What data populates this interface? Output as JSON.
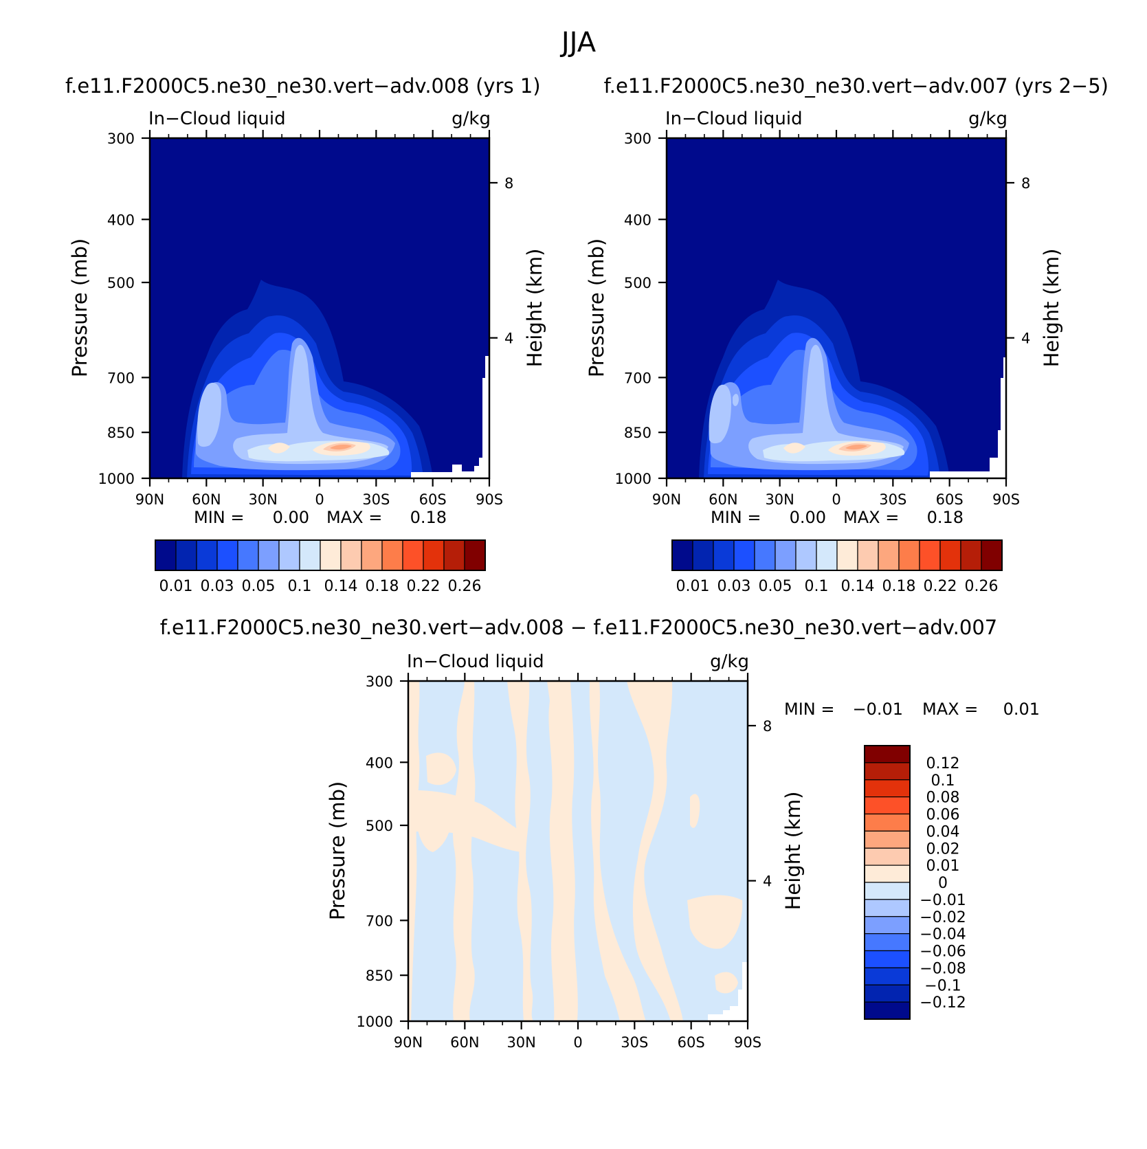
{
  "figure": {
    "title": "JJA"
  },
  "colors": {
    "main_scale": [
      "#000a8c",
      "#0224b0",
      "#0a3ad8",
      "#1c50ff",
      "#4678ff",
      "#7c9fff",
      "#aec8ff",
      "#d4e8fb",
      "#feebd8",
      "#fdcbb0",
      "#fda77e",
      "#fd7d4a",
      "#fd5128",
      "#e3320b",
      "#b51e08",
      "#800000"
    ],
    "diff_scale": [
      "#000a8c",
      "#0224b0",
      "#0a3ad8",
      "#1c50ff",
      "#4678ff",
      "#7c9fff",
      "#aec8ff",
      "#d4e8fb",
      "#feebd8",
      "#fdcbb0",
      "#fda77e",
      "#fd7d4a",
      "#fd5128",
      "#e3320b",
      "#b51e08",
      "#800000"
    ]
  },
  "chart_data": [
    {
      "type": "heatmap",
      "id": "panel1",
      "title": "f.e11.F2000C5.ne30_ne30.vert−adv.008 (yrs 1)",
      "variable": "In−Cloud liquid",
      "units": "g/kg",
      "ylabel": "Pressure (mb)",
      "ylabel_right": "Height (km)",
      "x_ticks": [
        "90N",
        "60N",
        "30N",
        "0",
        "30S",
        "60S",
        "90S"
      ],
      "y_ticks": [
        "300",
        "400",
        "500",
        "700",
        "850",
        "1000"
      ],
      "y2_ticks": [
        "8",
        "4"
      ],
      "xlim": [
        90,
        -90
      ],
      "ylim": [
        1000,
        300
      ],
      "min_label": "MIN =",
      "min_value": "0.00",
      "max_label": "MAX =",
      "max_value": "0.18",
      "colorbar_labels": [
        "0.01",
        "0.03",
        "0.05",
        "0.1",
        "0.14",
        "0.18",
        "0.22",
        "0.26"
      ]
    },
    {
      "type": "heatmap",
      "id": "panel2",
      "title": "f.e11.F2000C5.ne30_ne30.vert−adv.007 (yrs 2−5)",
      "variable": "In−Cloud liquid",
      "units": "g/kg",
      "ylabel": "Pressure (mb)",
      "ylabel_right": "Height (km)",
      "x_ticks": [
        "90N",
        "60N",
        "30N",
        "0",
        "30S",
        "60S",
        "90S"
      ],
      "y_ticks": [
        "300",
        "400",
        "500",
        "700",
        "850",
        "1000"
      ],
      "y2_ticks": [
        "8",
        "4"
      ],
      "xlim": [
        90,
        -90
      ],
      "ylim": [
        1000,
        300
      ],
      "min_label": "MIN =",
      "min_value": "0.00",
      "max_label": "MAX =",
      "max_value": "0.18",
      "colorbar_labels": [
        "0.01",
        "0.03",
        "0.05",
        "0.1",
        "0.14",
        "0.18",
        "0.22",
        "0.26"
      ]
    },
    {
      "type": "heatmap",
      "id": "panel3",
      "title": "f.e11.F2000C5.ne30_ne30.vert−adv.008 − f.e11.F2000C5.ne30_ne30.vert−adv.007",
      "variable": "In−Cloud liquid",
      "units": "g/kg",
      "ylabel": "Pressure (mb)",
      "ylabel_right": "Height (km)",
      "x_ticks": [
        "90N",
        "60N",
        "30N",
        "0",
        "30S",
        "60S",
        "90S"
      ],
      "y_ticks": [
        "300",
        "400",
        "500",
        "700",
        "850",
        "1000"
      ],
      "y2_ticks": [
        "8",
        "4"
      ],
      "xlim": [
        90,
        -90
      ],
      "ylim": [
        1000,
        300
      ],
      "min_label": "MIN =",
      "min_value": "−0.01",
      "max_label": "MAX =",
      "max_value": "0.01",
      "colorbar_labels": [
        "0.12",
        "0.1",
        "0.08",
        "0.06",
        "0.04",
        "0.02",
        "0.01",
        "0",
        "−0.01",
        "−0.02",
        "−0.04",
        "−0.06",
        "−0.08",
        "−0.1",
        "−0.12"
      ]
    }
  ]
}
